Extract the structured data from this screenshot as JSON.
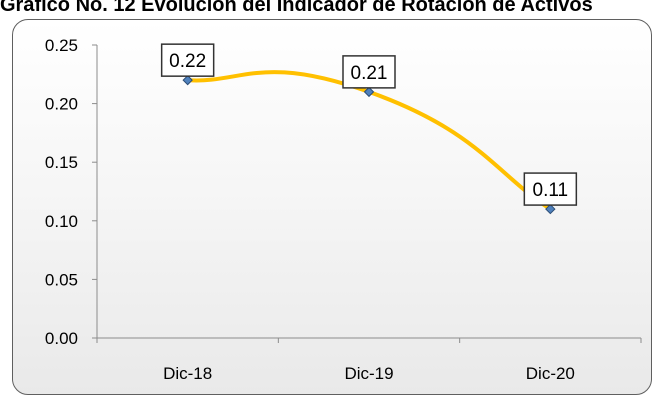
{
  "chart_data": {
    "type": "line",
    "title": "Gráfico No. 12 Evolución del Indicador de Rotación de Activos",
    "categories": [
      "Dic-18",
      "Dic-19",
      "Dic-20"
    ],
    "series": [
      {
        "values": [
          0.22,
          0.21,
          0.11
        ],
        "data_labels": [
          "0.22",
          "0.21",
          "0.11"
        ],
        "color": "#FFC000",
        "marker_color": "#4F81BD",
        "smooth": true
      }
    ],
    "ylim": [
      0,
      0.25
    ],
    "y_ticks": [
      0,
      0.05,
      0.1,
      0.15,
      0.2,
      0.25
    ],
    "y_tick_labels": [
      "0.00",
      "0.05",
      "0.10",
      "0.15",
      "0.20",
      "0.25"
    ],
    "xlabel": "",
    "ylabel": "",
    "grid": false,
    "legend": "none"
  }
}
